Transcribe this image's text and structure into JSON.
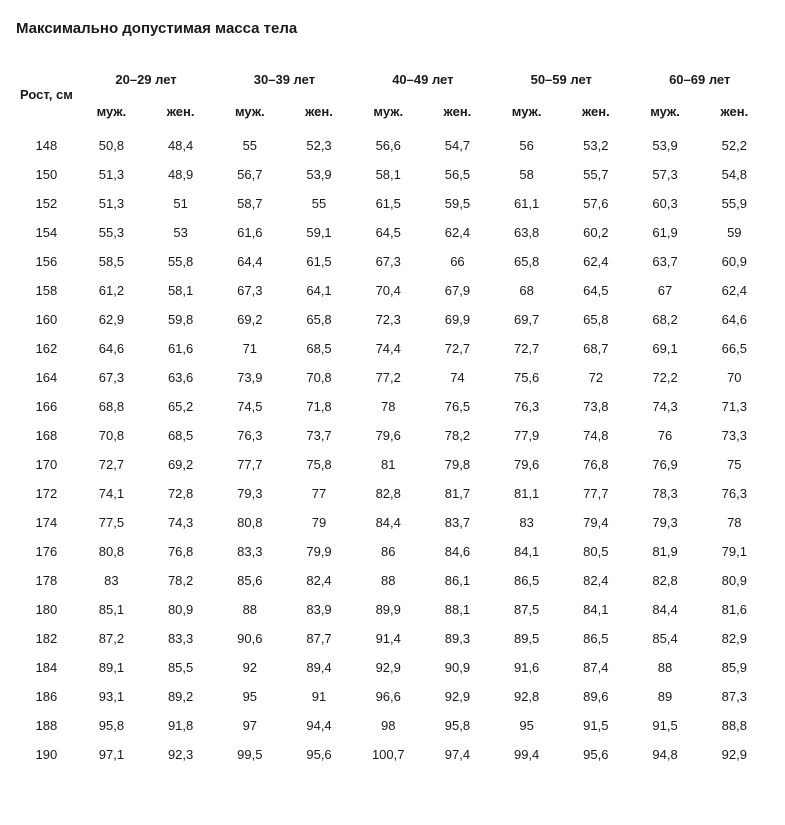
{
  "title": "Максимально допустимая масса тела",
  "columns": {
    "height_label": "Рост, см",
    "age_groups": [
      "20–29 лет",
      "30–39 лет",
      "40–49 лет",
      "50–59 лет",
      "60–69 лет"
    ],
    "gender_labels": {
      "m": "муж.",
      "f": "жен."
    }
  },
  "rows": [
    {
      "h": "148",
      "v": [
        "50,8",
        "48,4",
        "55",
        "52,3",
        "56,6",
        "54,7",
        "56",
        "53,2",
        "53,9",
        "52,2"
      ]
    },
    {
      "h": "150",
      "v": [
        "51,3",
        "48,9",
        "56,7",
        "53,9",
        "58,1",
        "56,5",
        "58",
        "55,7",
        "57,3",
        "54,8"
      ]
    },
    {
      "h": "152",
      "v": [
        "51,3",
        "51",
        "58,7",
        "55",
        "61,5",
        "59,5",
        "61,1",
        "57,6",
        "60,3",
        "55,9"
      ]
    },
    {
      "h": "154",
      "v": [
        "55,3",
        "53",
        "61,6",
        "59,1",
        "64,5",
        "62,4",
        "63,8",
        "60,2",
        "61,9",
        "59"
      ]
    },
    {
      "h": "156",
      "v": [
        "58,5",
        "55,8",
        "64,4",
        "61,5",
        "67,3",
        "66",
        "65,8",
        "62,4",
        "63,7",
        "60,9"
      ]
    },
    {
      "h": "158",
      "v": [
        "61,2",
        "58,1",
        "67,3",
        "64,1",
        "70,4",
        "67,9",
        "68",
        "64,5",
        "67",
        "62,4"
      ]
    },
    {
      "h": "160",
      "v": [
        "62,9",
        "59,8",
        "69,2",
        "65,8",
        "72,3",
        "69,9",
        "69,7",
        "65,8",
        "68,2",
        "64,6"
      ]
    },
    {
      "h": "162",
      "v": [
        "64,6",
        "61,6",
        "71",
        "68,5",
        "74,4",
        "72,7",
        "72,7",
        "68,7",
        "69,1",
        "66,5"
      ]
    },
    {
      "h": "164",
      "v": [
        "67,3",
        "63,6",
        "73,9",
        "70,8",
        "77,2",
        "74",
        "75,6",
        "72",
        "72,2",
        "70"
      ]
    },
    {
      "h": "166",
      "v": [
        "68,8",
        "65,2",
        "74,5",
        "71,8",
        "78",
        "76,5",
        "76,3",
        "73,8",
        "74,3",
        "71,3"
      ]
    },
    {
      "h": "168",
      "v": [
        "70,8",
        "68,5",
        "76,3",
        "73,7",
        "79,6",
        "78,2",
        "77,9",
        "74,8",
        "76",
        "73,3"
      ]
    },
    {
      "h": "170",
      "v": [
        "72,7",
        "69,2",
        "77,7",
        "75,8",
        "81",
        "79,8",
        "79,6",
        "76,8",
        "76,9",
        "75"
      ]
    },
    {
      "h": "172",
      "v": [
        "74,1",
        "72,8",
        "79,3",
        "77",
        "82,8",
        "81,7",
        "81,1",
        "77,7",
        "78,3",
        "76,3"
      ]
    },
    {
      "h": "174",
      "v": [
        "77,5",
        "74,3",
        "80,8",
        "79",
        "84,4",
        "83,7",
        "83",
        "79,4",
        "79,3",
        "78"
      ]
    },
    {
      "h": "176",
      "v": [
        "80,8",
        "76,8",
        "83,3",
        "79,9",
        "86",
        "84,6",
        "84,1",
        "80,5",
        "81,9",
        "79,1"
      ]
    },
    {
      "h": "178",
      "v": [
        "83",
        "78,2",
        "85,6",
        "82,4",
        "88",
        "86,1",
        "86,5",
        "82,4",
        "82,8",
        "80,9"
      ]
    },
    {
      "h": "180",
      "v": [
        "85,1",
        "80,9",
        "88",
        "83,9",
        "89,9",
        "88,1",
        "87,5",
        "84,1",
        "84,4",
        "81,6"
      ]
    },
    {
      "h": "182",
      "v": [
        "87,2",
        "83,3",
        "90,6",
        "87,7",
        "91,4",
        "89,3",
        "89,5",
        "86,5",
        "85,4",
        "82,9"
      ]
    },
    {
      "h": "184",
      "v": [
        "89,1",
        "85,5",
        "92",
        "89,4",
        "92,9",
        "90,9",
        "91,6",
        "87,4",
        "88",
        "85,9"
      ]
    },
    {
      "h": "186",
      "v": [
        "93,1",
        "89,2",
        "95",
        "91",
        "96,6",
        "92,9",
        "92,8",
        "89,6",
        "89",
        "87,3"
      ]
    },
    {
      "h": "188",
      "v": [
        "95,8",
        "91,8",
        "97",
        "94,4",
        "98",
        "95,8",
        "95",
        "91,5",
        "91,5",
        "88,8"
      ]
    },
    {
      "h": "190",
      "v": [
        "97,1",
        "92,3",
        "99,5",
        "95,6",
        "100,7",
        "97,4",
        "99,4",
        "95,6",
        "94,8",
        "92,9"
      ]
    }
  ],
  "style": {
    "background_color": "#ffffff",
    "text_color": "#1a1a1a",
    "title_fontsize": 15,
    "header_fontsize": 13,
    "cell_fontsize": 13,
    "font_family": "sans-serif"
  }
}
